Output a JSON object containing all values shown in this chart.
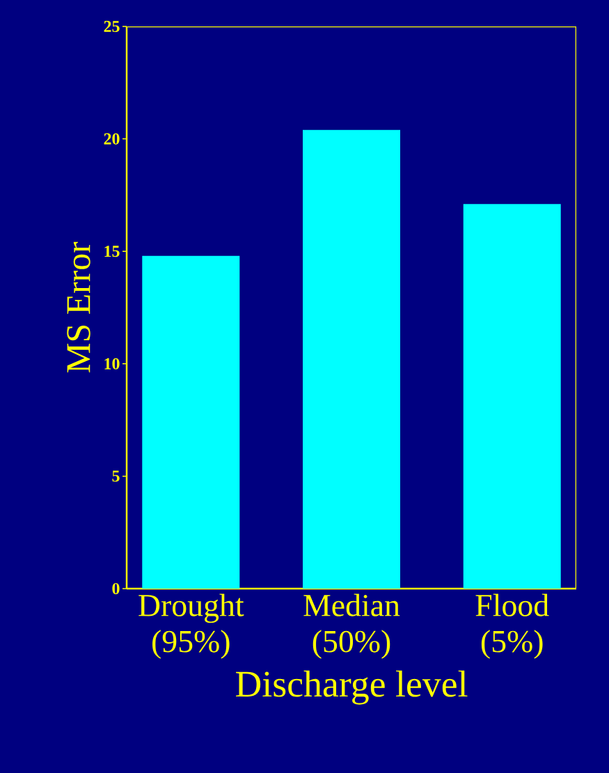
{
  "chart_data": {
    "type": "bar",
    "xlabel": "Discharge level",
    "ylabel": "MS Error",
    "categories": [
      "Drought (95%)",
      "Median (50%)",
      "Flood (5%)"
    ],
    "values": [
      14.8,
      20.4,
      17.1
    ],
    "color": "#00ffff",
    "ylim": [
      0,
      25
    ],
    "yticks": [
      0,
      5,
      10,
      15,
      20,
      25
    ],
    "grid": false
  }
}
